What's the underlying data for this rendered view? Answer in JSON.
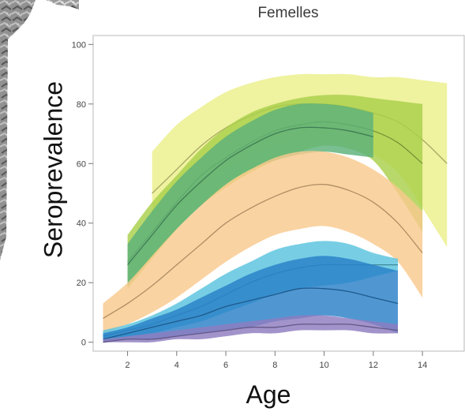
{
  "chart_data": {
    "type": "area",
    "title": "Femelles",
    "xlabel": "Age",
    "ylabel": "Seroprevalence",
    "xlim": [
      0.6,
      15.7
    ],
    "ylim": [
      -3,
      103
    ],
    "xticks": [
      2,
      4,
      6,
      8,
      10,
      12,
      14
    ],
    "yticks": [
      0,
      20,
      40,
      60,
      80,
      100
    ],
    "grid": false,
    "series": [
      {
        "color": "#ecef8a",
        "x": [
          3,
          4,
          5,
          6,
          7,
          8,
          9,
          10,
          11,
          12,
          13,
          14,
          15
        ],
        "upper": [
          64,
          73,
          79,
          84,
          87,
          89,
          90,
          90,
          90,
          89,
          89,
          88,
          87
        ],
        "lower": [
          38,
          45,
          52,
          58,
          63,
          66,
          68,
          68,
          67,
          63,
          57,
          45,
          32
        ],
        "mid": [
          50,
          58,
          66,
          72,
          76,
          79,
          80,
          80,
          79,
          77,
          74,
          68,
          60
        ]
      },
      {
        "color": "#a9cf4a",
        "x": [
          2,
          3,
          4,
          5,
          6,
          7,
          8,
          9,
          10,
          11,
          12,
          13,
          14
        ],
        "upper": [
          36,
          47,
          56,
          65,
          72,
          77,
          80,
          82,
          83,
          83,
          82,
          81,
          80
        ],
        "lower": [
          18,
          28,
          38,
          46,
          52,
          57,
          61,
          64,
          66,
          65,
          61,
          50,
          37
        ],
        "mid": [
          27,
          37,
          47,
          56,
          62,
          67,
          71,
          73,
          74,
          73,
          71,
          67,
          60
        ]
      },
      {
        "color": "#5bb17a",
        "x": [
          2,
          3,
          4,
          5,
          6,
          7,
          8,
          9,
          10,
          11,
          12
        ],
        "upper": [
          33,
          44,
          54,
          62,
          69,
          74,
          78,
          80,
          80,
          79,
          77
        ],
        "lower": [
          19,
          29,
          38,
          46,
          53,
          58,
          61,
          63,
          64,
          63,
          62
        ],
        "mid": [
          26,
          36,
          46,
          54,
          61,
          66,
          70,
          72,
          72,
          71,
          69
        ]
      },
      {
        "color": "#f9c98e",
        "x": [
          1,
          2,
          3,
          4,
          5,
          6,
          7,
          8,
          9,
          10,
          11,
          12,
          13,
          14
        ],
        "upper": [
          13,
          20,
          29,
          38,
          46,
          53,
          58,
          62,
          64,
          64,
          62,
          58,
          52,
          44
        ],
        "lower": [
          3,
          6,
          10,
          15,
          21,
          27,
          32,
          36,
          38,
          39,
          37,
          33,
          27,
          15
        ],
        "mid": [
          8,
          13,
          19,
          26,
          33,
          40,
          45,
          49,
          52,
          53,
          51,
          47,
          40,
          30
        ]
      },
      {
        "color": "#59c3de",
        "x": [
          1,
          2,
          3,
          4,
          5,
          6,
          7,
          8,
          9,
          10,
          11,
          12,
          13
        ],
        "upper": [
          4,
          6,
          9,
          13,
          18,
          23,
          27,
          31,
          33,
          34,
          33,
          30,
          28
        ],
        "lower": [
          1,
          2,
          3,
          5,
          7,
          10,
          13,
          16,
          18,
          19,
          20,
          22,
          24
        ],
        "mid": [
          2,
          4,
          6,
          9,
          12,
          16,
          20,
          23,
          25,
          26,
          26,
          26,
          26
        ]
      },
      {
        "color": "#2a80c8",
        "x": [
          1,
          2,
          3,
          4,
          5,
          6,
          7,
          8,
          9,
          10,
          11,
          12,
          13
        ],
        "upper": [
          3,
          5,
          8,
          11,
          15,
          19,
          23,
          26,
          28,
          29,
          28,
          26,
          24
        ],
        "lower": [
          0,
          1,
          1,
          2,
          3,
          4,
          5,
          7,
          8,
          9,
          8,
          6,
          3
        ],
        "mid": [
          1,
          3,
          5,
          7,
          9,
          12,
          14,
          16,
          18,
          18,
          17,
          15,
          13
        ]
      },
      {
        "color": "#8d7cc0",
        "x": [
          1,
          2,
          3,
          4,
          5,
          6,
          7,
          8,
          9,
          10,
          11,
          12,
          13
        ],
        "upper": [
          1,
          2,
          3,
          4,
          5,
          6,
          7,
          8,
          9,
          9,
          8,
          7,
          6
        ],
        "lower": [
          0,
          0,
          0,
          1,
          1,
          2,
          3,
          3,
          4,
          4,
          4,
          3,
          3
        ],
        "mid": [
          0,
          1,
          1,
          2,
          3,
          4,
          5,
          5,
          6,
          6,
          6,
          5,
          4
        ]
      }
    ]
  },
  "photo": {
    "icon": "rocky-terrain-photo-fragment"
  }
}
